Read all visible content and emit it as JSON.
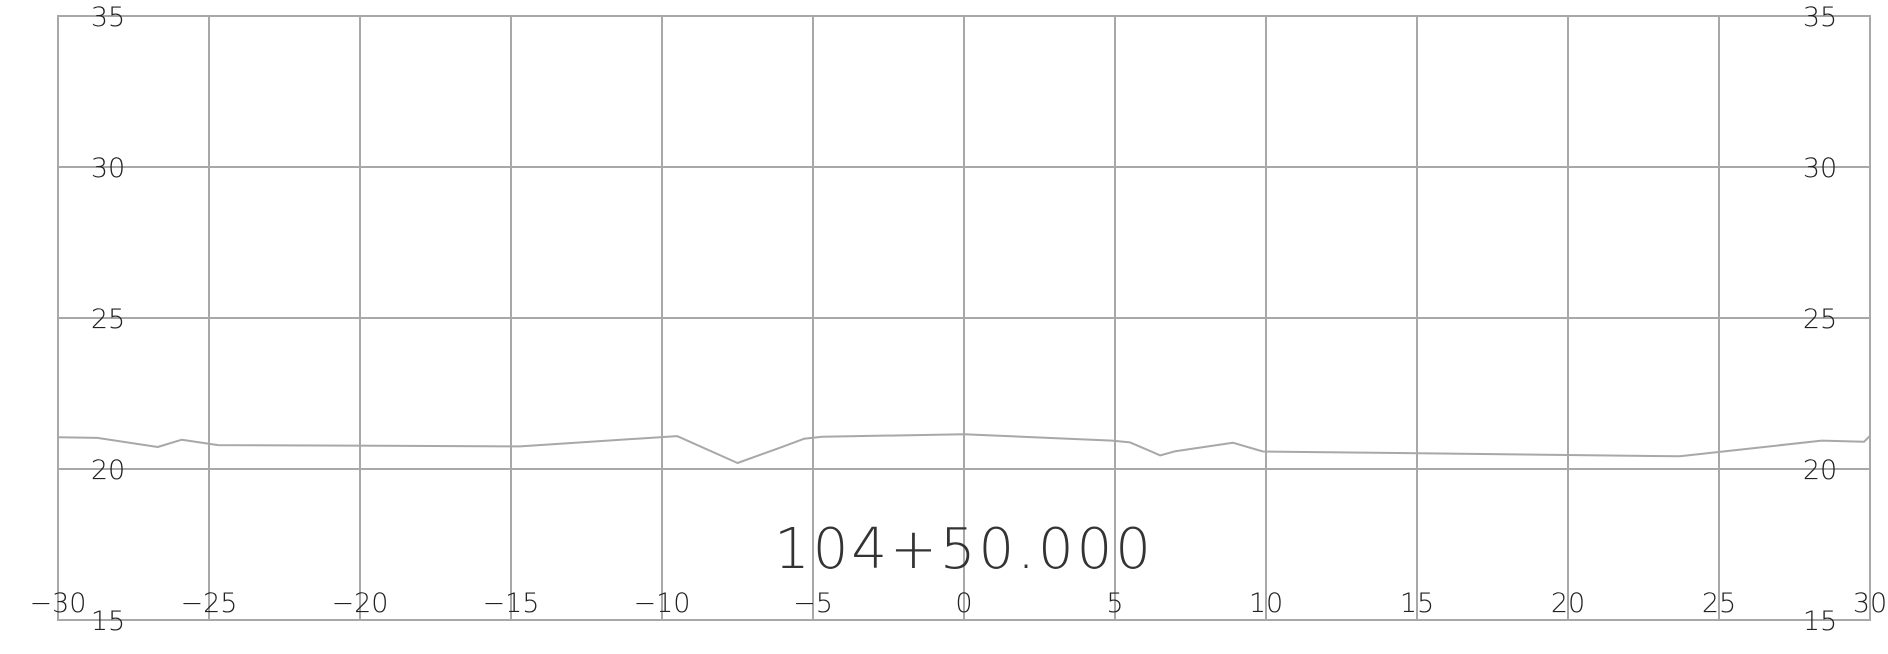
{
  "chart_data": {
    "type": "line",
    "title": "104+50.000",
    "xlabel": "",
    "ylabel": "",
    "xlim": [
      -30,
      30
    ],
    "ylim": [
      15,
      35
    ],
    "x_ticks": [
      "−30",
      "−25",
      "−20",
      "−15",
      "−10",
      "−5",
      "0",
      "5",
      "10",
      "15",
      "20",
      "25",
      "30"
    ],
    "y_ticks": [
      "35",
      "30",
      "25",
      "20",
      "15"
    ],
    "y_tick_values": [
      35,
      30,
      25,
      20,
      15
    ],
    "x_tick_values": [
      -30,
      -25,
      -20,
      -15,
      -10,
      -5,
      0,
      5,
      10,
      15,
      20,
      25,
      30
    ],
    "grid": true,
    "colors": {
      "grid": "#a8a8a8",
      "line": "#a8a8a8",
      "text": "#222222"
    },
    "series": [
      {
        "x": [
          -30.0,
          -28.7,
          -26.7,
          -25.9,
          -24.7,
          -14.7,
          -9.5,
          -7.5,
          -6.0,
          -5.3,
          -4.7,
          0.0,
          4.9,
          5.5,
          6.5,
          7.0,
          8.9,
          9.9,
          23.7,
          28.4,
          29.8,
          30.0
        ],
        "y": [
          21.05,
          21.03,
          20.73,
          20.97,
          20.79,
          20.75,
          21.09,
          20.2,
          20.74,
          21.0,
          21.07,
          21.15,
          20.94,
          20.88,
          20.45,
          20.59,
          20.87,
          20.58,
          20.42,
          20.94,
          20.9,
          21.1
        ]
      }
    ]
  }
}
